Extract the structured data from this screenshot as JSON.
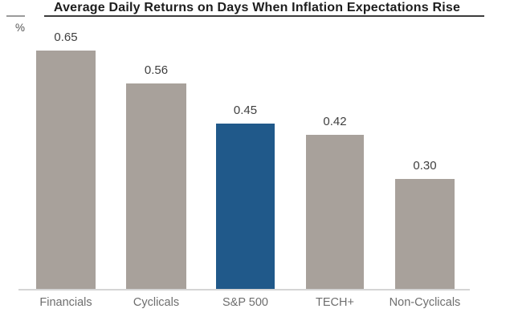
{
  "chart_data": {
    "type": "bar",
    "title": "Average Daily Returns on Days When Inflation Expectations Rise",
    "ylabel": "%",
    "xlabel": "",
    "categories": [
      "Financials",
      "Cyclicals",
      "S&P 500",
      "TECH+",
      "Non-Cyclicals"
    ],
    "values": [
      0.65,
      0.56,
      0.45,
      0.42,
      0.3
    ],
    "value_labels": [
      "0.65",
      "0.56",
      "0.45",
      "0.42",
      "0.30"
    ],
    "highlighted_category": "S&P 500",
    "ylim": [
      0,
      0.78
    ],
    "grid": false,
    "legend": false,
    "data_labels_position": "above-bars"
  },
  "colors": {
    "bar_default": "#a8a19b",
    "bar_highlight": "#20598a",
    "title_text": "#1d1d1d",
    "value_label": "#3f3f3f",
    "category_label": "#6e6e6e",
    "axis_line": "#d5d5d5",
    "title_underline": "#3c3c3c",
    "left_tick": "#9b9b9b"
  }
}
